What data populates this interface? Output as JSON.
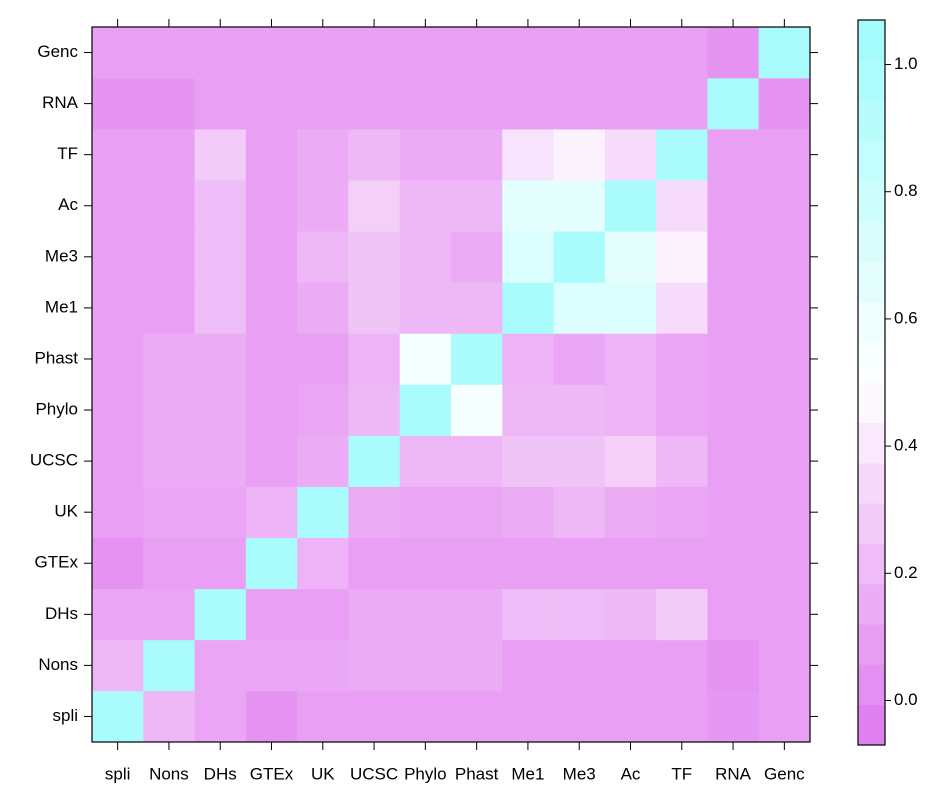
{
  "chart_data": {
    "type": "heatmap",
    "categories": [
      "spli",
      "Nons",
      "DHs",
      "GTEx",
      "UK",
      "UCSC",
      "Phylo",
      "Phast",
      "Me1",
      "Me3",
      "Ac",
      "TF",
      "RNA",
      "Genc"
    ],
    "matrix": [
      [
        1,
        0.2,
        0.12,
        0.05,
        0.1,
        0.1,
        0.1,
        0.1,
        0.1,
        0.1,
        0.1,
        0.1,
        0.06,
        0.1
      ],
      [
        0.2,
        1,
        0.12,
        0.12,
        0.13,
        0.15,
        0.15,
        0.15,
        0.1,
        0.1,
        0.1,
        0.1,
        0.05,
        0.1
      ],
      [
        0.12,
        0.12,
        1,
        0.1,
        0.1,
        0.15,
        0.15,
        0.15,
        0.22,
        0.22,
        0.2,
        0.28,
        0.1,
        0.1
      ],
      [
        0.04,
        0.1,
        0.1,
        1,
        0.18,
        0.1,
        0.1,
        0.1,
        0.1,
        0.1,
        0.1,
        0.1,
        0.1,
        0.1
      ],
      [
        0.1,
        0.12,
        0.12,
        0.18,
        1,
        0.15,
        0.12,
        0.12,
        0.15,
        0.2,
        0.15,
        0.12,
        0.1,
        0.1
      ],
      [
        0.1,
        0.15,
        0.15,
        0.1,
        0.15,
        1,
        0.2,
        0.2,
        0.25,
        0.25,
        0.3,
        0.2,
        0.1,
        0.1
      ],
      [
        0.1,
        0.15,
        0.15,
        0.1,
        0.12,
        0.2,
        1,
        0.55,
        0.2,
        0.2,
        0.18,
        0.12,
        0.1,
        0.1
      ],
      [
        0.1,
        0.15,
        0.15,
        0.1,
        0.1,
        0.18,
        0.55,
        1,
        0.18,
        0.13,
        0.18,
        0.12,
        0.1,
        0.1
      ],
      [
        0.1,
        0.1,
        0.22,
        0.1,
        0.15,
        0.25,
        0.2,
        0.2,
        1,
        0.7,
        0.7,
        0.35,
        0.1,
        0.1
      ],
      [
        0.1,
        0.1,
        0.22,
        0.1,
        0.2,
        0.25,
        0.2,
        0.15,
        0.7,
        1,
        0.65,
        0.45,
        0.1,
        0.1
      ],
      [
        0.1,
        0.1,
        0.22,
        0.1,
        0.15,
        0.3,
        0.2,
        0.2,
        0.65,
        0.65,
        1,
        0.35,
        0.1,
        0.1
      ],
      [
        0.1,
        0.1,
        0.28,
        0.1,
        0.15,
        0.2,
        0.15,
        0.15,
        0.38,
        0.45,
        0.35,
        1,
        0.1,
        0.1
      ],
      [
        0.05,
        0.05,
        0.1,
        0.1,
        0.1,
        0.1,
        0.1,
        0.1,
        0.1,
        0.1,
        0.1,
        0.1,
        1,
        0.05
      ],
      [
        0.1,
        0.1,
        0.1,
        0.1,
        0.1,
        0.1,
        0.1,
        0.1,
        0.1,
        0.1,
        0.1,
        0.1,
        0.05,
        1
      ]
    ],
    "zlim": [
      -0.07,
      1.07
    ],
    "zticks": [
      {
        "value": 0,
        "label": "0.0"
      },
      0.2,
      0.4,
      0.6,
      0.8,
      {
        "value": 1,
        "label": "1.0"
      }
    ],
    "colorscale": [
      "#df78ef",
      "#ffffff",
      "#9efbfb"
    ]
  }
}
